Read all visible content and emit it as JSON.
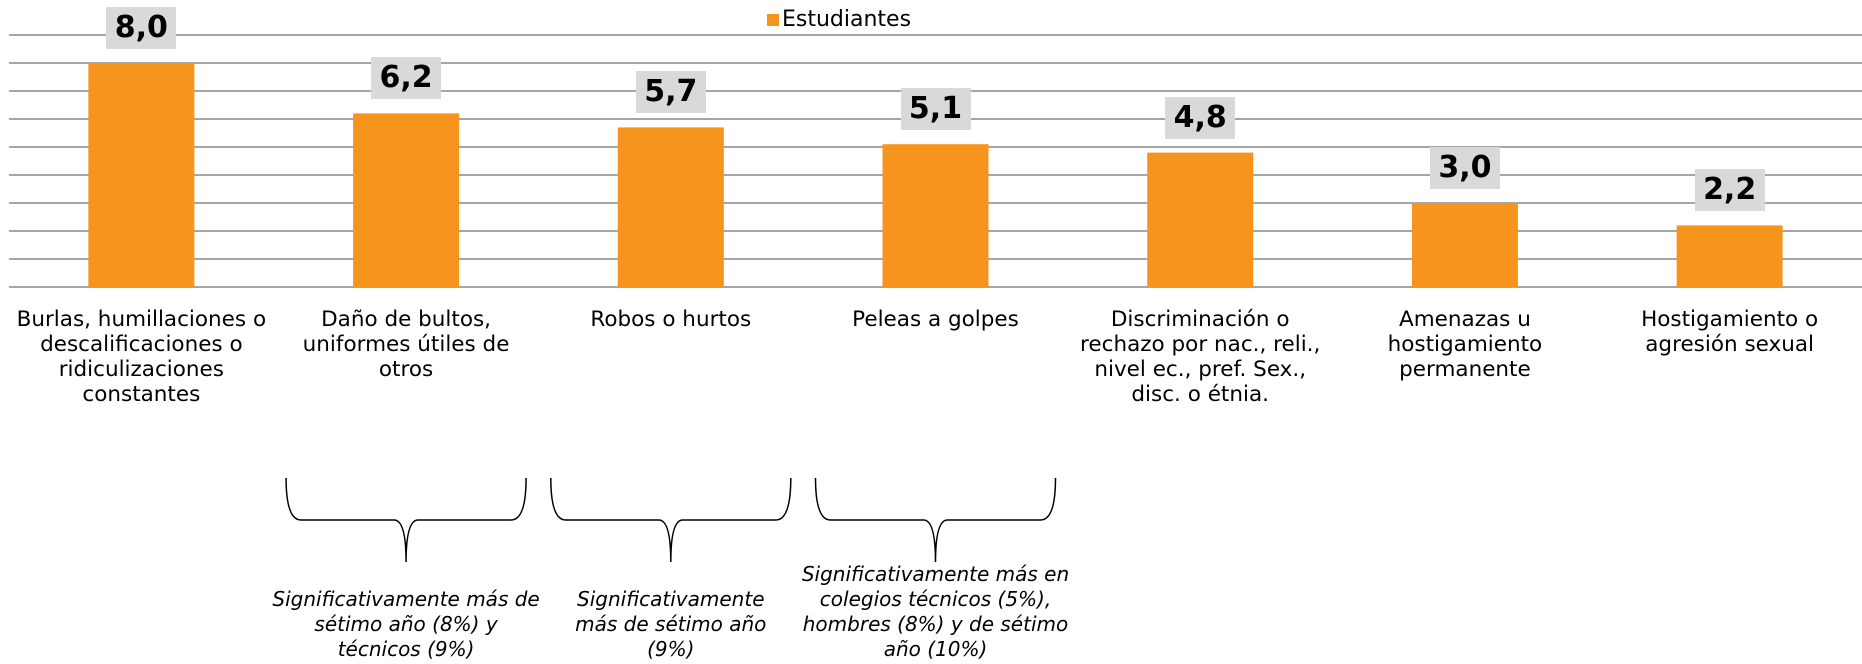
{
  "chart_data": {
    "type": "bar",
    "legend": "Estudiantes",
    "categories": [
      "Burlas, humillaciones o descalificaciones o ridiculizaciones constantes",
      "Daño de bultos, uniformes útiles de otros",
      "Robos o hurtos",
      "Peleas a golpes",
      "Discriminación o rechazo por nac., reli., nivel ec., pref. Sex., disc. o étnia.",
      "Amenazas u hostigamiento permanente",
      "Hostigamiento o agresión sexual"
    ],
    "values": [
      8.0,
      6.2,
      5.7,
      5.1,
      4.8,
      3.0,
      2.2
    ],
    "value_labels": [
      "8,0",
      "6,2",
      "5,7",
      "5,1",
      "4,8",
      "3,0",
      "2,2"
    ],
    "color": "#f7941d",
    "ylim": [
      0,
      9
    ],
    "yticks": [
      0,
      1,
      2,
      3,
      4,
      5,
      6,
      7,
      8,
      9
    ],
    "grid": true,
    "annotations": [
      "Significativamente más de sétimo año (8%) y técnicos (9%)",
      "Significativamente más de sétimo año (9%)",
      "Significativamente más en colegios técnicos (5%), hombres (8%) y de sétimo año (10%)"
    ]
  }
}
